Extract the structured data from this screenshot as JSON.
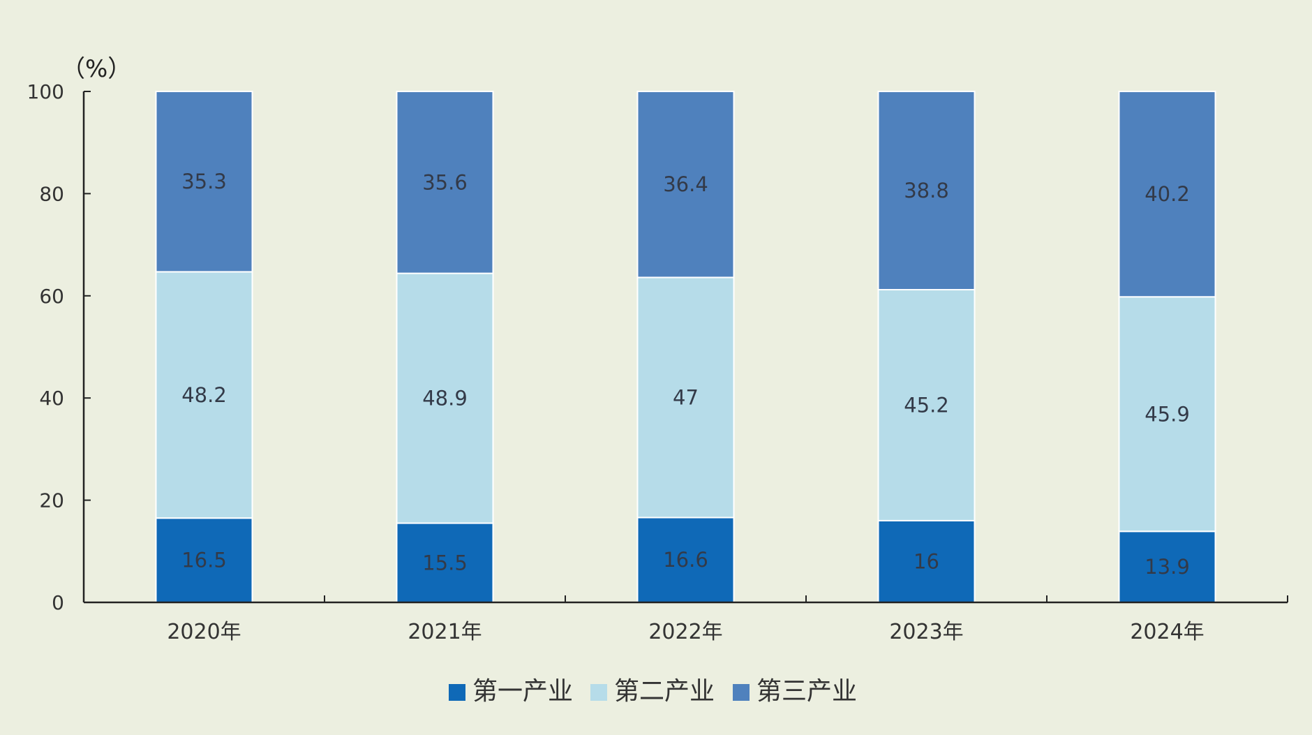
{
  "chart_data": {
    "type": "bar",
    "stacked": true,
    "unit_label": "（%）",
    "categories": [
      "2020年",
      "2021年",
      "2022年",
      "2023年",
      "2024年"
    ],
    "ylim": [
      0,
      100
    ],
    "yticks": [
      "0",
      "20",
      "40",
      "60",
      "80",
      "100"
    ],
    "series": [
      {
        "name": "第一产业",
        "color": "#0f69b7",
        "values": [
          16.5,
          15.5,
          16.6,
          16,
          13.9
        ],
        "labels": [
          "16.5",
          "15.5",
          "16.6",
          "16",
          "13.9"
        ]
      },
      {
        "name": "第二产业",
        "color": "#b6dce9",
        "values": [
          48.2,
          48.9,
          47,
          45.2,
          45.9
        ],
        "labels": [
          "48.2",
          "48.9",
          "47",
          "45.2",
          "45.9"
        ]
      },
      {
        "name": "第三产业",
        "color": "#4f81bd",
        "values": [
          35.3,
          35.6,
          36.4,
          38.8,
          40.2
        ],
        "labels": [
          "35.3",
          "35.6",
          "36.4",
          "38.8",
          "40.2"
        ]
      }
    ],
    "legend_position": "bottom-center",
    "grid": false
  }
}
